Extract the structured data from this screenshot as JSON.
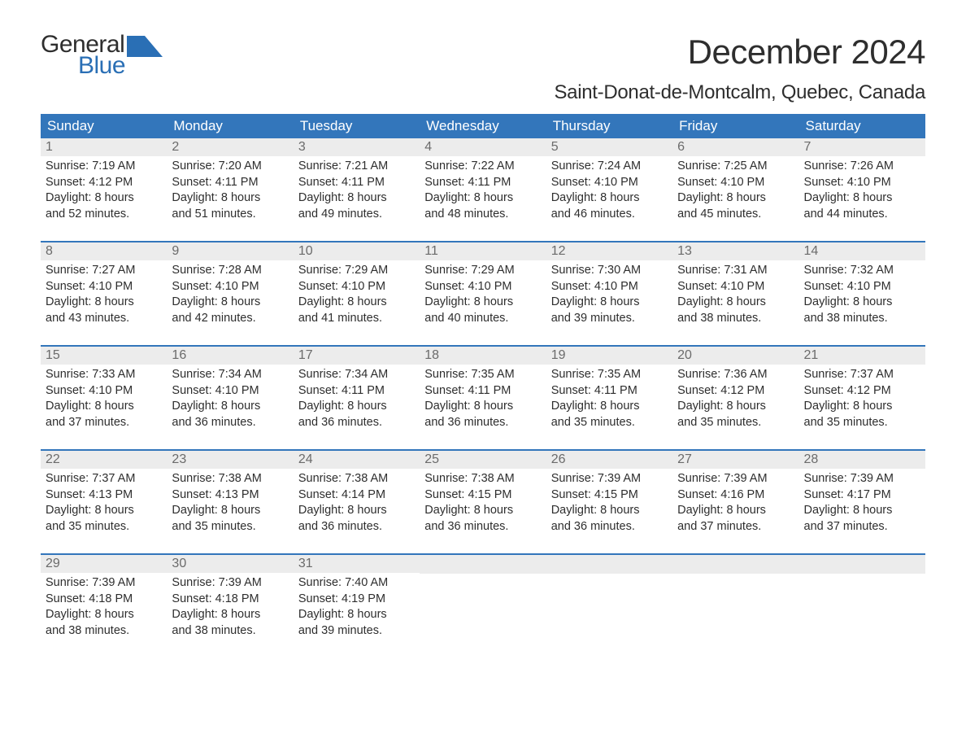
{
  "logo": {
    "text_general": "General",
    "text_blue": "Blue",
    "icon_fill": "#2a6fb5"
  },
  "title": "December 2024",
  "subtitle": "Saint-Donat-de-Montcalm, Quebec, Canada",
  "colors": {
    "header_bg": "#3376bb",
    "header_text": "#ffffff",
    "week_border": "#3376bb",
    "daynum_bg": "#ececec",
    "daynum_text": "#6b6b6b",
    "body_text": "#2e2e2e",
    "page_bg": "#ffffff"
  },
  "weekdays": [
    "Sunday",
    "Monday",
    "Tuesday",
    "Wednesday",
    "Thursday",
    "Friday",
    "Saturday"
  ],
  "weeks": [
    [
      {
        "day": "1",
        "sunrise": "Sunrise: 7:19 AM",
        "sunset": "Sunset: 4:12 PM",
        "daylight1": "Daylight: 8 hours",
        "daylight2": "and 52 minutes."
      },
      {
        "day": "2",
        "sunrise": "Sunrise: 7:20 AM",
        "sunset": "Sunset: 4:11 PM",
        "daylight1": "Daylight: 8 hours",
        "daylight2": "and 51 minutes."
      },
      {
        "day": "3",
        "sunrise": "Sunrise: 7:21 AM",
        "sunset": "Sunset: 4:11 PM",
        "daylight1": "Daylight: 8 hours",
        "daylight2": "and 49 minutes."
      },
      {
        "day": "4",
        "sunrise": "Sunrise: 7:22 AM",
        "sunset": "Sunset: 4:11 PM",
        "daylight1": "Daylight: 8 hours",
        "daylight2": "and 48 minutes."
      },
      {
        "day": "5",
        "sunrise": "Sunrise: 7:24 AM",
        "sunset": "Sunset: 4:10 PM",
        "daylight1": "Daylight: 8 hours",
        "daylight2": "and 46 minutes."
      },
      {
        "day": "6",
        "sunrise": "Sunrise: 7:25 AM",
        "sunset": "Sunset: 4:10 PM",
        "daylight1": "Daylight: 8 hours",
        "daylight2": "and 45 minutes."
      },
      {
        "day": "7",
        "sunrise": "Sunrise: 7:26 AM",
        "sunset": "Sunset: 4:10 PM",
        "daylight1": "Daylight: 8 hours",
        "daylight2": "and 44 minutes."
      }
    ],
    [
      {
        "day": "8",
        "sunrise": "Sunrise: 7:27 AM",
        "sunset": "Sunset: 4:10 PM",
        "daylight1": "Daylight: 8 hours",
        "daylight2": "and 43 minutes."
      },
      {
        "day": "9",
        "sunrise": "Sunrise: 7:28 AM",
        "sunset": "Sunset: 4:10 PM",
        "daylight1": "Daylight: 8 hours",
        "daylight2": "and 42 minutes."
      },
      {
        "day": "10",
        "sunrise": "Sunrise: 7:29 AM",
        "sunset": "Sunset: 4:10 PM",
        "daylight1": "Daylight: 8 hours",
        "daylight2": "and 41 minutes."
      },
      {
        "day": "11",
        "sunrise": "Sunrise: 7:29 AM",
        "sunset": "Sunset: 4:10 PM",
        "daylight1": "Daylight: 8 hours",
        "daylight2": "and 40 minutes."
      },
      {
        "day": "12",
        "sunrise": "Sunrise: 7:30 AM",
        "sunset": "Sunset: 4:10 PM",
        "daylight1": "Daylight: 8 hours",
        "daylight2": "and 39 minutes."
      },
      {
        "day": "13",
        "sunrise": "Sunrise: 7:31 AM",
        "sunset": "Sunset: 4:10 PM",
        "daylight1": "Daylight: 8 hours",
        "daylight2": "and 38 minutes."
      },
      {
        "day": "14",
        "sunrise": "Sunrise: 7:32 AM",
        "sunset": "Sunset: 4:10 PM",
        "daylight1": "Daylight: 8 hours",
        "daylight2": "and 38 minutes."
      }
    ],
    [
      {
        "day": "15",
        "sunrise": "Sunrise: 7:33 AM",
        "sunset": "Sunset: 4:10 PM",
        "daylight1": "Daylight: 8 hours",
        "daylight2": "and 37 minutes."
      },
      {
        "day": "16",
        "sunrise": "Sunrise: 7:34 AM",
        "sunset": "Sunset: 4:10 PM",
        "daylight1": "Daylight: 8 hours",
        "daylight2": "and 36 minutes."
      },
      {
        "day": "17",
        "sunrise": "Sunrise: 7:34 AM",
        "sunset": "Sunset: 4:11 PM",
        "daylight1": "Daylight: 8 hours",
        "daylight2": "and 36 minutes."
      },
      {
        "day": "18",
        "sunrise": "Sunrise: 7:35 AM",
        "sunset": "Sunset: 4:11 PM",
        "daylight1": "Daylight: 8 hours",
        "daylight2": "and 36 minutes."
      },
      {
        "day": "19",
        "sunrise": "Sunrise: 7:35 AM",
        "sunset": "Sunset: 4:11 PM",
        "daylight1": "Daylight: 8 hours",
        "daylight2": "and 35 minutes."
      },
      {
        "day": "20",
        "sunrise": "Sunrise: 7:36 AM",
        "sunset": "Sunset: 4:12 PM",
        "daylight1": "Daylight: 8 hours",
        "daylight2": "and 35 minutes."
      },
      {
        "day": "21",
        "sunrise": "Sunrise: 7:37 AM",
        "sunset": "Sunset: 4:12 PM",
        "daylight1": "Daylight: 8 hours",
        "daylight2": "and 35 minutes."
      }
    ],
    [
      {
        "day": "22",
        "sunrise": "Sunrise: 7:37 AM",
        "sunset": "Sunset: 4:13 PM",
        "daylight1": "Daylight: 8 hours",
        "daylight2": "and 35 minutes."
      },
      {
        "day": "23",
        "sunrise": "Sunrise: 7:38 AM",
        "sunset": "Sunset: 4:13 PM",
        "daylight1": "Daylight: 8 hours",
        "daylight2": "and 35 minutes."
      },
      {
        "day": "24",
        "sunrise": "Sunrise: 7:38 AM",
        "sunset": "Sunset: 4:14 PM",
        "daylight1": "Daylight: 8 hours",
        "daylight2": "and 36 minutes."
      },
      {
        "day": "25",
        "sunrise": "Sunrise: 7:38 AM",
        "sunset": "Sunset: 4:15 PM",
        "daylight1": "Daylight: 8 hours",
        "daylight2": "and 36 minutes."
      },
      {
        "day": "26",
        "sunrise": "Sunrise: 7:39 AM",
        "sunset": "Sunset: 4:15 PM",
        "daylight1": "Daylight: 8 hours",
        "daylight2": "and 36 minutes."
      },
      {
        "day": "27",
        "sunrise": "Sunrise: 7:39 AM",
        "sunset": "Sunset: 4:16 PM",
        "daylight1": "Daylight: 8 hours",
        "daylight2": "and 37 minutes."
      },
      {
        "day": "28",
        "sunrise": "Sunrise: 7:39 AM",
        "sunset": "Sunset: 4:17 PM",
        "daylight1": "Daylight: 8 hours",
        "daylight2": "and 37 minutes."
      }
    ],
    [
      {
        "day": "29",
        "sunrise": "Sunrise: 7:39 AM",
        "sunset": "Sunset: 4:18 PM",
        "daylight1": "Daylight: 8 hours",
        "daylight2": "and 38 minutes."
      },
      {
        "day": "30",
        "sunrise": "Sunrise: 7:39 AM",
        "sunset": "Sunset: 4:18 PM",
        "daylight1": "Daylight: 8 hours",
        "daylight2": "and 38 minutes."
      },
      {
        "day": "31",
        "sunrise": "Sunrise: 7:40 AM",
        "sunset": "Sunset: 4:19 PM",
        "daylight1": "Daylight: 8 hours",
        "daylight2": "and 39 minutes."
      },
      {
        "blank": true
      },
      {
        "blank": true
      },
      {
        "blank": true
      },
      {
        "blank": true
      }
    ]
  ]
}
